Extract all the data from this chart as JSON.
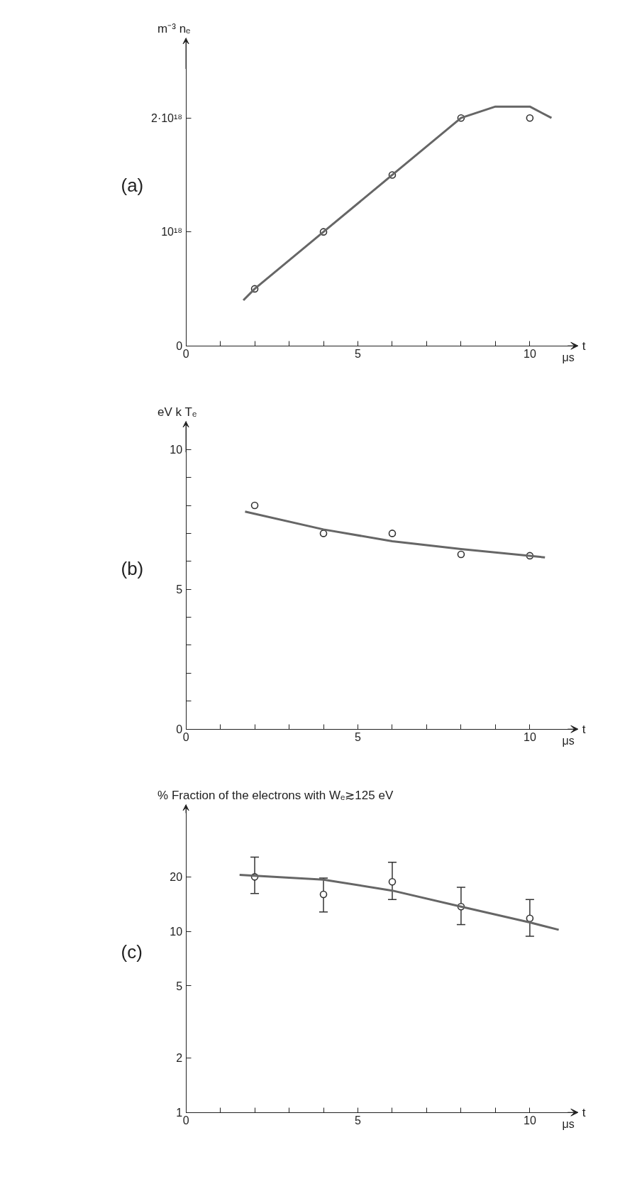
{
  "chart_data": [
    {
      "type": "scatter",
      "title": "(a)",
      "ylabel": "m⁻³  nₑ",
      "xlabel": "t",
      "annotations": [
        "μs"
      ],
      "xlim": [
        0,
        11.4
      ],
      "ylim": [
        0,
        2.7e+18
      ],
      "xticks": [
        0,
        {
          "value": 1,
          "label": null
        },
        {
          "value": 2,
          "label": null
        },
        {
          "value": 3,
          "label": null
        },
        {
          "value": 4,
          "label": null
        },
        5,
        {
          "value": 6,
          "label": null
        },
        {
          "value": 7,
          "label": null
        },
        {
          "value": 8,
          "label": null
        },
        {
          "value": 9,
          "label": null
        },
        10
      ],
      "yticks": [
        0,
        {
          "value": 1e+18,
          "label": "10¹⁸"
        },
        {
          "value": 2e+18,
          "label": "2·10¹⁸"
        }
      ],
      "grid": false,
      "line_style": "solid",
      "series": [
        {
          "color": "#333333",
          "marker": "circle",
          "x": [
            2,
            4,
            6,
            8,
            10
          ],
          "values": [
            5e+17,
            1e+18,
            1.5e+18,
            2e+18,
            2e+18
          ]
        },
        {
          "type": "line",
          "marker": "none",
          "color": "#666666",
          "x": [
            1.67,
            2,
            4,
            6,
            8,
            9,
            9.55,
            10,
            10.63
          ],
          "values": [
            4e+17,
            5e+17,
            1e+18,
            1.5e+18,
            2e+18,
            2.1e+18,
            2.1e+18,
            2.1e+18,
            2e+18
          ]
        }
      ]
    },
    {
      "type": "scatter",
      "title": "(b)",
      "ylabel": "eV  k Tₑ",
      "xlabel": "t",
      "annotations": [
        "μs"
      ],
      "xlim": [
        0,
        11.4
      ],
      "ylim": [
        0,
        11
      ],
      "xticks": [
        0,
        {
          "value": 1,
          "label": null
        },
        {
          "value": 2,
          "label": null
        },
        {
          "value": 3,
          "label": null
        },
        {
          "value": 4,
          "label": null
        },
        5,
        {
          "value": 6,
          "label": null
        },
        {
          "value": 7,
          "label": null
        },
        {
          "value": 8,
          "label": null
        },
        {
          "value": 9,
          "label": null
        },
        10
      ],
      "yticks": [
        0,
        {
          "value": 1,
          "label": null
        },
        {
          "value": 2,
          "label": null
        },
        {
          "value": 3,
          "label": null
        },
        {
          "value": 4,
          "label": null
        },
        5,
        {
          "value": 6,
          "label": null
        },
        {
          "value": 7,
          "label": null
        },
        {
          "value": 8,
          "label": null
        },
        {
          "value": 9,
          "label": null
        },
        10
      ],
      "grid": false,
      "line_style": "solid",
      "series": [
        {
          "color": "#333333",
          "marker": "circle",
          "x": [
            2,
            4,
            6,
            8,
            10
          ],
          "values": [
            8.0,
            7.0,
            7.0,
            6.25,
            6.2
          ]
        },
        {
          "type": "line",
          "marker": "none",
          "color": "#666666",
          "x": [
            1.72,
            4,
            6,
            8,
            10.44
          ],
          "values": [
            7.78,
            7.14,
            6.72,
            6.44,
            6.14
          ]
        }
      ]
    },
    {
      "type": "scatter",
      "title": "(c)",
      "ylabel": "%  Fraction of the electrons with Wₑ≳125 eV",
      "xlabel": "t",
      "annotations": [
        "μs"
      ],
      "xlim": [
        0,
        11.4
      ],
      "ylim": [
        1,
        50
      ],
      "log": "y",
      "xticks": [
        0,
        {
          "value": 1,
          "label": null
        },
        {
          "value": 2,
          "label": null
        },
        {
          "value": 3,
          "label": null
        },
        {
          "value": 4,
          "label": null
        },
        5,
        {
          "value": 6,
          "label": null
        },
        {
          "value": 7,
          "label": null
        },
        {
          "value": 8,
          "label": null
        },
        {
          "value": 9,
          "label": null
        },
        10
      ],
      "yticks": [
        1,
        2,
        5,
        10,
        20
      ],
      "grid": false,
      "line_style": "solid",
      "series": [
        {
          "color": "#333333",
          "marker": "circle",
          "x": [
            2,
            4,
            6,
            8,
            10
          ],
          "values": [
            20,
            16,
            18.8,
            13.7,
            11.8
          ],
          "errors": [
            [
              16.2,
              25.7
            ],
            [
              12.8,
              19.7
            ],
            [
              15,
              24.1
            ],
            [
              10.9,
              17.5
            ],
            [
              9.4,
              15
            ]
          ]
        },
        {
          "type": "line",
          "marker": "none",
          "color": "#666666",
          "x": [
            1.56,
            4,
            6,
            8,
            10,
            10.84
          ],
          "values": [
            20.5,
            19.3,
            16.8,
            13.7,
            11.2,
            10.2
          ]
        }
      ]
    }
  ]
}
